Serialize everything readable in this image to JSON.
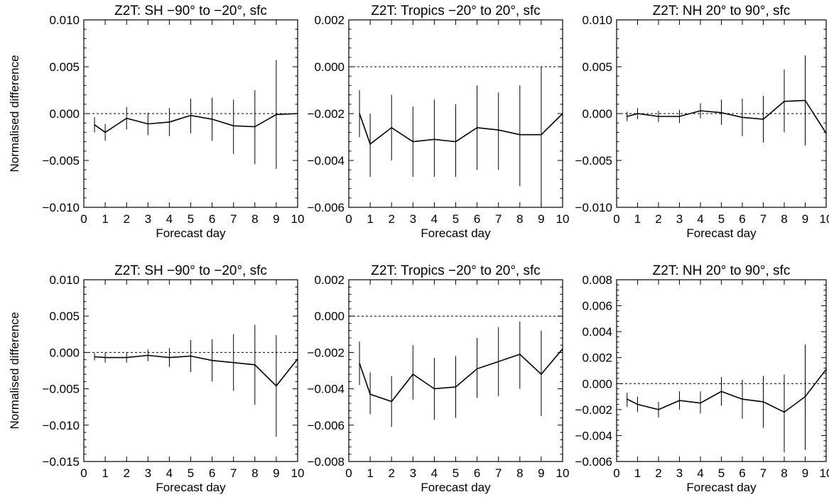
{
  "chart_data": [
    {
      "type": "line",
      "title": "Z2T: SH −90° to −20°, sfc",
      "xlabel": "Forecast day",
      "ylabel": "Normalised difference",
      "xlim": [
        0,
        10
      ],
      "ylim": [
        -0.01,
        0.01
      ],
      "x_ticks": [
        "0",
        "1",
        "2",
        "3",
        "4",
        "5",
        "6",
        "7",
        "8",
        "9",
        "10"
      ],
      "y_ticks": [
        "−0.010",
        "−0.005",
        "0.000",
        "0.005",
        "0.010"
      ],
      "y_tick_values": [
        -0.01,
        -0.005,
        0.0,
        0.005,
        0.01
      ],
      "zero_line": true,
      "series": [
        {
          "x": [
            0.5,
            1,
            2,
            3,
            4,
            5,
            6,
            7,
            8,
            9,
            10
          ],
          "y": [
            -0.0012,
            -0.002,
            -0.0005,
            -0.0011,
            -0.0009,
            -0.0002,
            -0.0006,
            -0.0013,
            -0.0014,
            -0.0001,
            0.0
          ],
          "err_low": [
            -0.002,
            -0.0029,
            -0.0017,
            -0.0023,
            -0.0024,
            -0.0021,
            -0.0029,
            -0.0043,
            -0.0054,
            -0.0059,
            -0.0077
          ],
          "err_high": [
            -0.0004,
            -0.0011,
            0.0007,
            0.0001,
            0.0006,
            0.0016,
            0.0017,
            0.0015,
            0.0025,
            0.0057,
            0.0077
          ]
        }
      ]
    },
    {
      "type": "line",
      "title": "Z2T: Tropics −20° to 20°, sfc",
      "xlabel": "Forecast day",
      "ylabel": "",
      "xlim": [
        0,
        10
      ],
      "ylim": [
        -0.006,
        0.002
      ],
      "x_ticks": [
        "0",
        "1",
        "2",
        "3",
        "4",
        "5",
        "6",
        "7",
        "8",
        "9",
        "10"
      ],
      "y_ticks": [
        "−0.006",
        "−0.004",
        "−0.002",
        "0.000",
        "0.002"
      ],
      "y_tick_values": [
        -0.006,
        -0.004,
        -0.002,
        0.0,
        0.002
      ],
      "zero_line": true,
      "series": [
        {
          "x": [
            0.5,
            1,
            2,
            3,
            4,
            5,
            6,
            7,
            8,
            9,
            10
          ],
          "y": [
            -0.002,
            -0.0033,
            -0.0026,
            -0.0032,
            -0.0031,
            -0.0032,
            -0.0026,
            -0.0027,
            -0.0029,
            -0.0029,
            -0.002
          ],
          "err_low": [
            -0.003,
            -0.0047,
            -0.004,
            -0.0047,
            -0.0047,
            -0.0047,
            -0.0044,
            -0.0044,
            -0.0051,
            -0.0059,
            -0.0057
          ],
          "err_high": [
            -0.001,
            -0.002,
            -0.0012,
            -0.0017,
            -0.0014,
            -0.0016,
            -0.0008,
            -0.0011,
            -0.0008,
            0.0,
            0.0017
          ]
        }
      ]
    },
    {
      "type": "line",
      "title": "Z2T: NH 20° to 90°, sfc",
      "xlabel": "Forecast day",
      "ylabel": "",
      "xlim": [
        0,
        10
      ],
      "ylim": [
        -0.01,
        0.01
      ],
      "x_ticks": [
        "0",
        "1",
        "2",
        "3",
        "4",
        "5",
        "6",
        "7",
        "8",
        "9",
        "10"
      ],
      "y_ticks": [
        "−0.010",
        "−0.005",
        "0.000",
        "0.005",
        "0.010"
      ],
      "y_tick_values": [
        -0.01,
        -0.005,
        0.0,
        0.005,
        0.01
      ],
      "zero_line": true,
      "series": [
        {
          "x": [
            0.5,
            1,
            2,
            3,
            4,
            5,
            6,
            7,
            8,
            9,
            10
          ],
          "y": [
            -0.0003,
            0.0,
            -0.0003,
            -0.0003,
            0.0003,
            0.0001,
            -0.0004,
            -0.0006,
            0.0013,
            0.0014,
            -0.0021
          ],
          "err_low": [
            -0.0008,
            -0.0006,
            -0.0009,
            -0.001,
            -0.0005,
            -0.0012,
            -0.0024,
            -0.0031,
            -0.002,
            -0.0034,
            -0.0085
          ],
          "err_high": [
            0.0002,
            0.0006,
            0.0003,
            0.0004,
            0.0011,
            0.0015,
            0.0016,
            0.0019,
            0.0047,
            0.0062,
            0.0043
          ]
        }
      ]
    },
    {
      "type": "line",
      "title": "Z2T: SH −90° to −20°, sfc",
      "xlabel": "Forecast day",
      "ylabel": "Normalised difference",
      "xlim": [
        0,
        10
      ],
      "ylim": [
        -0.015,
        0.01
      ],
      "x_ticks": [
        "0",
        "1",
        "2",
        "3",
        "4",
        "5",
        "6",
        "7",
        "8",
        "9",
        "10"
      ],
      "y_ticks": [
        "−0.015",
        "−0.010",
        "−0.005",
        "0.000",
        "0.005",
        "0.010"
      ],
      "y_tick_values": [
        -0.015,
        -0.01,
        -0.005,
        0.0,
        0.005,
        0.01
      ],
      "zero_line": true,
      "series": [
        {
          "x": [
            0.5,
            1,
            2,
            3,
            4,
            5,
            6,
            7,
            8,
            9,
            10
          ],
          "y": [
            -0.0006,
            -0.0007,
            -0.0007,
            -0.0004,
            -0.0007,
            -0.0005,
            -0.0011,
            -0.0014,
            -0.0017,
            -0.0046,
            -0.0009
          ],
          "err_low": [
            -0.0011,
            -0.0014,
            -0.0014,
            -0.0012,
            -0.002,
            -0.0027,
            -0.004,
            -0.0053,
            -0.0072,
            -0.0116,
            -0.01
          ],
          "err_high": [
            -0.0001,
            0.0,
            0.0,
            0.0004,
            0.0006,
            0.0017,
            0.0018,
            0.0025,
            0.0038,
            0.0024,
            0.0082
          ]
        }
      ]
    },
    {
      "type": "line",
      "title": "Z2T: Tropics −20° to 20°, sfc",
      "xlabel": "Forecast day",
      "ylabel": "",
      "xlim": [
        0,
        10
      ],
      "ylim": [
        -0.008,
        0.002
      ],
      "x_ticks": [
        "0",
        "1",
        "2",
        "3",
        "4",
        "5",
        "6",
        "7",
        "8",
        "9",
        "10"
      ],
      "y_ticks": [
        "−0.008",
        "−0.006",
        "−0.004",
        "−0.002",
        "0.000",
        "0.002"
      ],
      "y_tick_values": [
        -0.008,
        -0.006,
        -0.004,
        -0.002,
        0.0,
        0.002
      ],
      "zero_line": true,
      "series": [
        {
          "x": [
            0.5,
            1,
            2,
            3,
            4,
            5,
            6,
            7,
            8,
            9,
            10
          ],
          "y": [
            -0.0026,
            -0.0043,
            -0.0047,
            -0.0032,
            -0.004,
            -0.0039,
            -0.0029,
            -0.0025,
            -0.0021,
            -0.0032,
            -0.0018
          ],
          "err_low": [
            -0.0038,
            -0.0054,
            -0.0061,
            -0.0046,
            -0.0057,
            -0.0056,
            -0.0045,
            -0.0044,
            -0.004,
            -0.0055,
            -0.0045
          ],
          "err_high": [
            -0.0014,
            -0.0031,
            -0.0033,
            -0.0016,
            -0.0023,
            -0.0022,
            -0.0012,
            -0.0006,
            -0.0003,
            -0.0008,
            0.0011
          ]
        }
      ]
    },
    {
      "type": "line",
      "title": "Z2T: NH 20° to 90°, sfc",
      "xlabel": "Forecast day",
      "ylabel": "",
      "xlim": [
        0,
        10
      ],
      "ylim": [
        -0.006,
        0.008
      ],
      "x_ticks": [
        "0",
        "1",
        "2",
        "3",
        "4",
        "5",
        "6",
        "7",
        "8",
        "9",
        "10"
      ],
      "y_ticks": [
        "−0.006",
        "−0.004",
        "−0.002",
        "0.000",
        "0.002",
        "0.004",
        "0.006",
        "0.008"
      ],
      "y_tick_values": [
        -0.006,
        -0.004,
        -0.002,
        0.0,
        0.002,
        0.004,
        0.006,
        0.008
      ],
      "zero_line": true,
      "series": [
        {
          "x": [
            0.5,
            1,
            2,
            3,
            4,
            5,
            6,
            7,
            8,
            9,
            10
          ],
          "y": [
            -0.0012,
            -0.0016,
            -0.002,
            -0.0013,
            -0.0015,
            -0.0006,
            -0.0012,
            -0.0014,
            -0.0022,
            -0.001,
            0.0011
          ],
          "err_low": [
            -0.0018,
            -0.0022,
            -0.0026,
            -0.002,
            -0.0023,
            -0.0017,
            -0.0027,
            -0.0034,
            -0.0053,
            -0.0051,
            -0.004
          ],
          "err_high": [
            -0.0007,
            -0.001,
            -0.0014,
            -0.0006,
            -0.0006,
            0.0005,
            0.0003,
            0.0006,
            0.0007,
            0.003,
            0.0062
          ]
        }
      ]
    }
  ]
}
